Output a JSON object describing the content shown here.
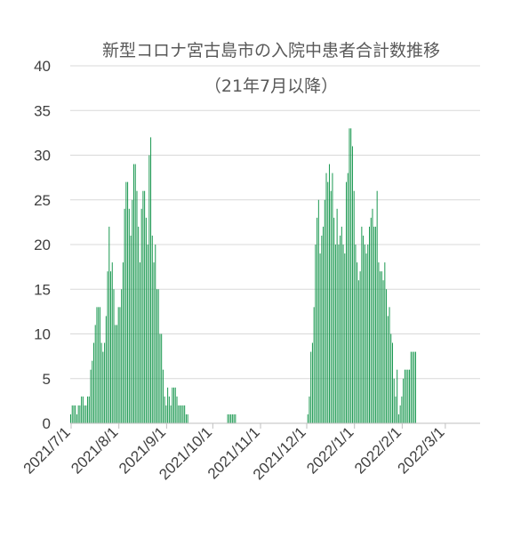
{
  "chart_data": {
    "type": "bar",
    "title": "新型コロナ宮古島市の入院中患者合計数推移",
    "subtitle": "（21年7月以降）",
    "xlabel": "",
    "ylabel": "",
    "ylim": [
      0,
      40
    ],
    "y_ticks": [
      "0",
      "5",
      "10",
      "15",
      "20",
      "25",
      "30",
      "35",
      "40"
    ],
    "x_start": "2021-07-01",
    "x_tick_labels": [
      "2021/7/1",
      "2021/8/1",
      "2021/9/1",
      "2021/10/1",
      "2021/11/1",
      "2021/12/1",
      "2022/1/1",
      "2022/2/1",
      "2022/3/1"
    ],
    "x_tick_dates": [
      "2021-07-01",
      "2021-08-01",
      "2021-09-01",
      "2021-10-01",
      "2021-11-01",
      "2021-12-01",
      "2022-01-01",
      "2022-02-01",
      "2022-03-01"
    ],
    "grid": true,
    "bar_color": "#1a9850",
    "values": [
      1,
      2,
      2,
      2,
      1,
      2,
      2,
      3,
      3,
      2,
      2,
      3,
      3,
      6,
      7,
      9,
      11,
      13,
      13,
      13,
      9,
      8,
      9,
      12,
      17,
      22,
      17,
      18,
      15,
      11,
      11,
      13,
      13,
      15,
      18,
      24,
      27,
      27,
      24,
      21,
      25,
      29,
      29,
      26,
      22,
      18,
      24,
      26,
      26,
      23,
      20,
      30,
      32,
      21,
      18,
      20,
      15,
      15,
      10,
      10,
      6,
      3,
      2,
      4,
      3,
      2,
      4,
      4,
      4,
      3,
      2,
      2,
      2,
      2,
      2,
      1,
      1,
      0,
      0,
      0,
      0,
      0,
      0,
      0,
      0,
      0,
      0,
      0,
      0,
      0,
      0,
      0,
      0,
      0,
      0,
      0,
      0,
      0,
      0,
      0,
      0,
      0,
      1,
      1,
      1,
      1,
      1,
      1,
      0,
      0,
      0,
      0,
      0,
      0,
      0,
      0,
      0,
      0,
      0,
      0,
      0,
      0,
      0,
      0,
      0,
      0,
      0,
      0,
      0,
      0,
      0,
      0,
      0,
      0,
      0,
      0,
      0,
      0,
      0,
      0,
      0,
      0,
      0,
      0,
      0,
      0,
      0,
      0,
      0,
      0,
      0,
      0,
      0,
      0,
      1,
      3,
      8,
      9,
      13,
      20,
      23,
      25,
      19,
      21,
      22,
      25,
      28,
      27,
      29,
      26,
      28,
      23,
      20,
      24,
      20,
      21,
      22,
      20,
      19,
      27,
      28,
      33,
      33,
      31,
      26,
      20,
      18,
      16,
      17,
      22,
      21,
      20,
      19,
      20,
      22,
      23,
      24,
      22,
      22,
      26,
      18,
      17,
      17,
      16,
      18,
      15,
      12,
      13,
      10,
      9,
      5,
      3,
      6,
      1,
      2,
      3,
      5,
      6,
      6,
      6,
      6,
      8,
      8,
      8,
      8
    ]
  }
}
